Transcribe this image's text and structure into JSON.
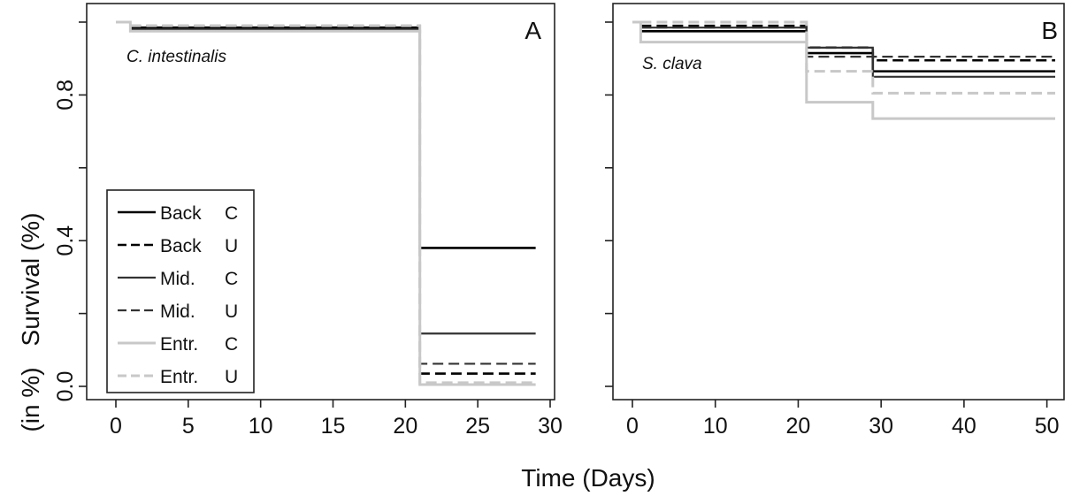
{
  "chart_data": [
    {
      "type": "line",
      "panel_label": "A",
      "species_label": "C. intestinalis",
      "xlim": [
        0,
        30
      ],
      "ylim": [
        0,
        1
      ],
      "x_ticks": [
        "0",
        "5",
        "10",
        "15",
        "20",
        "25",
        "30"
      ],
      "x_tick_values": [
        0,
        5,
        10,
        15,
        20,
        25,
        30
      ],
      "y_ticks": [
        "0.0",
        "0.4",
        "0.8"
      ],
      "y_tick_values": [
        0.0,
        0.4,
        0.8
      ],
      "y_minor_tick_values": [
        0.2,
        0.6,
        1.0
      ],
      "step_curve": true,
      "series": [
        {
          "name": "Back C",
          "x": [
            1,
            21,
            29
          ],
          "y": [
            0.985,
            0.38,
            0.38
          ],
          "color": "#000000",
          "dashed": false,
          "width": 2.6
        },
        {
          "name": "Back U",
          "x": [
            1,
            21,
            29
          ],
          "y": [
            0.99,
            0.035,
            0.035
          ],
          "color": "#000000",
          "dashed": true,
          "width": 2.6
        },
        {
          "name": "Mid. C",
          "x": [
            1,
            21,
            29
          ],
          "y": [
            0.98,
            0.145,
            0.145
          ],
          "color": "#333333",
          "dashed": false,
          "width": 2.2
        },
        {
          "name": "Mid. U",
          "x": [
            1,
            21,
            29
          ],
          "y": [
            0.98,
            0.062,
            0.062
          ],
          "color": "#333333",
          "dashed": true,
          "width": 2.2
        },
        {
          "name": "Entr. C",
          "x": [
            0,
            1,
            21,
            29
          ],
          "y": [
            1.0,
            0.975,
            0.005,
            0.005
          ],
          "color": "#c8c8c8",
          "dashed": false,
          "width": 3.0
        },
        {
          "name": "Entr. U",
          "x": [
            1,
            21,
            29
          ],
          "y": [
            0.99,
            0.01,
            0.01
          ],
          "color": "#c8c8c8",
          "dashed": true,
          "width": 3.0
        }
      ],
      "legend": {
        "placement": "bottom-left",
        "entries": [
          {
            "line1": "Back",
            "line2": "C"
          },
          {
            "line1": "Back",
            "line2": "U"
          },
          {
            "line1": "Mid.",
            "line2": "C"
          },
          {
            "line1": "Mid.",
            "line2": "U"
          },
          {
            "line1": "Entr.",
            "line2": "C"
          },
          {
            "line1": "Entr.",
            "line2": "U"
          }
        ]
      }
    },
    {
      "type": "line",
      "panel_label": "B",
      "species_label": "S. clava",
      "xlim": [
        0,
        51
      ],
      "ylim": [
        0,
        1
      ],
      "x_ticks": [
        "0",
        "10",
        "20",
        "30",
        "40",
        "50"
      ],
      "x_tick_values": [
        0,
        10,
        20,
        30,
        40,
        50
      ],
      "y_tick_values": [
        0.0,
        0.2,
        0.4,
        0.6,
        0.8,
        1.0
      ],
      "step_curve": true,
      "series": [
        {
          "name": "Back C",
          "x": [
            1,
            21,
            29,
            51
          ],
          "y": [
            0.975,
            0.915,
            0.865,
            0.865
          ],
          "color": "#000000",
          "dashed": false,
          "width": 2.6
        },
        {
          "name": "Back U",
          "x": [
            1,
            21,
            29,
            51
          ],
          "y": [
            0.99,
            0.93,
            0.895,
            0.895
          ],
          "color": "#000000",
          "dashed": true,
          "width": 2.6
        },
        {
          "name": "Mid. C",
          "x": [
            1,
            21,
            29,
            51
          ],
          "y": [
            0.985,
            0.93,
            0.85,
            0.85
          ],
          "color": "#333333",
          "dashed": false,
          "width": 2.2
        },
        {
          "name": "Mid. U",
          "x": [
            1,
            21,
            29,
            51
          ],
          "y": [
            0.985,
            0.905,
            0.905,
            0.905
          ],
          "color": "#333333",
          "dashed": true,
          "width": 2.2
        },
        {
          "name": "Entr. C",
          "x": [
            0,
            1,
            21,
            29,
            51
          ],
          "y": [
            1.0,
            0.945,
            0.78,
            0.735,
            0.735
          ],
          "color": "#c8c8c8",
          "dashed": false,
          "width": 3.0
        },
        {
          "name": "Entr. U",
          "x": [
            1,
            21,
            29,
            51
          ],
          "y": [
            1.0,
            0.865,
            0.805,
            0.805
          ],
          "color": "#c8c8c8",
          "dashed": true,
          "width": 3.0
        }
      ]
    }
  ],
  "axes": {
    "ylabel": "Survival (%)",
    "ylabel_extra": "(in %)",
    "xlabel": "Time (Days)"
  }
}
